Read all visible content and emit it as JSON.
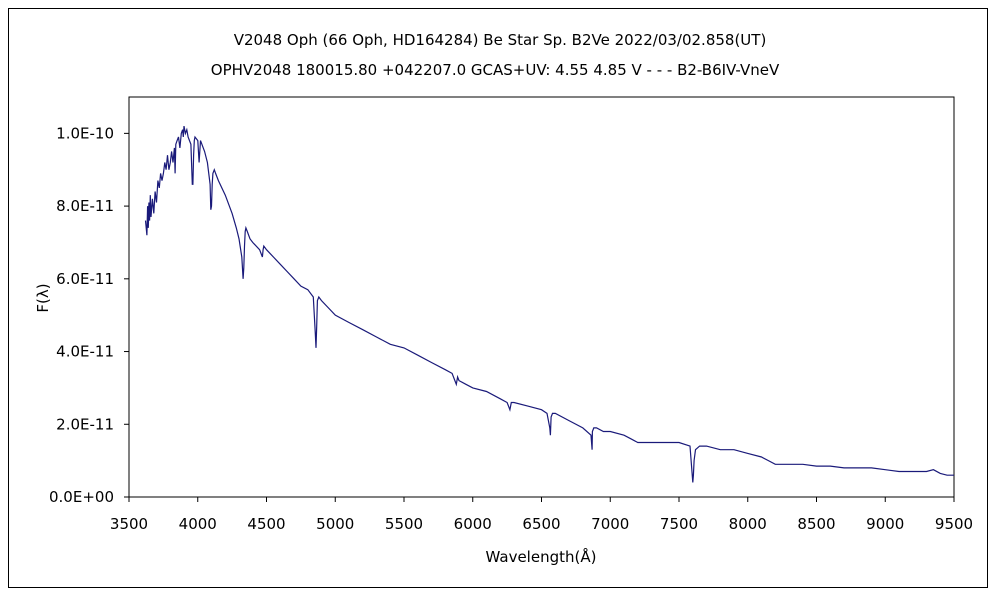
{
  "chart_data": {
    "type": "line",
    "title": "V2048 Oph (66 Oph, HD164284)    Be Star    Sp. B2Ve    2022/03/02.858(UT)",
    "subtitle": "OPHV2048 180015.80 +042207.0 GCAS+UV: 4.55 4.85 V - - - B2-B6IV-VneV",
    "xlabel": "Wavelength(Å)",
    "ylabel": "F(λ)",
    "xlim": [
      3500,
      9500
    ],
    "ylim": [
      0,
      1.1e-10
    ],
    "grid": false,
    "x_ticks": [
      3500,
      4000,
      4500,
      5000,
      5500,
      6000,
      6500,
      7000,
      7500,
      8000,
      8500,
      9000,
      9500
    ],
    "x_tick_labels": [
      "3500",
      "4000",
      "4500",
      "5000",
      "5500",
      "6000",
      "6500",
      "7000",
      "7500",
      "8000",
      "8500",
      "9000",
      "9500"
    ],
    "y_ticks": [
      0,
      2e-11,
      4e-11,
      6e-11,
      8e-11,
      1e-10
    ],
    "y_tick_labels": [
      "0.0E+00",
      "2.0E-11",
      "4.0E-11",
      "6.0E-11",
      "8.0E-11",
      "1.0E-10"
    ],
    "series": [
      {
        "color": "#1a1a7a",
        "x": [
          3620,
          3630,
          3635,
          3640,
          3645,
          3650,
          3655,
          3660,
          3670,
          3680,
          3690,
          3700,
          3710,
          3720,
          3730,
          3740,
          3750,
          3760,
          3770,
          3780,
          3790,
          3800,
          3810,
          3820,
          3830,
          3835,
          3840,
          3850,
          3860,
          3870,
          3880,
          3890,
          3895,
          3900,
          3910,
          3920,
          3930,
          3940,
          3950,
          3960,
          3965,
          3970,
          3975,
          3980,
          4000,
          4010,
          4020,
          4030,
          4050,
          4070,
          4090,
          4095,
          4100,
          4105,
          4110,
          4120,
          4130,
          4150,
          4200,
          4250,
          4280,
          4300,
          4320,
          4330,
          4335,
          4340,
          4345,
          4350,
          4360,
          4380,
          4400,
          4450,
          4470,
          4475,
          4480,
          4500,
          4550,
          4600,
          4650,
          4700,
          4750,
          4800,
          4840,
          4855,
          4860,
          4865,
          4870,
          4880,
          4900,
          4950,
          5000,
          5100,
          5200,
          5300,
          5400,
          5500,
          5600,
          5700,
          5800,
          5850,
          5880,
          5890,
          5900,
          5950,
          6000,
          6100,
          6200,
          6250,
          6270,
          6280,
          6300,
          6400,
          6500,
          6540,
          6560,
          6565,
          6570,
          6580,
          6600,
          6700,
          6800,
          6860,
          6868,
          6870,
          6880,
          6900,
          6950,
          7000,
          7100,
          7150,
          7200,
          7300,
          7400,
          7500,
          7580,
          7600,
          7605,
          7610,
          7620,
          7650,
          7700,
          7800,
          7900,
          8000,
          8100,
          8150,
          8200,
          8300,
          8400,
          8500,
          8600,
          8700,
          8800,
          8900,
          9000,
          9100,
          9200,
          9300,
          9350,
          9400,
          9450,
          9500
        ],
        "y": [
          7.6e-11,
          7.2e-11,
          8e-11,
          7.4e-11,
          8.1e-11,
          7.6e-11,
          8.3e-11,
          7.7e-11,
          8.2e-11,
          7.8e-11,
          8.4e-11,
          8.1e-11,
          8.7e-11,
          8.5e-11,
          8.9e-11,
          8.7e-11,
          8.9e-11,
          9.2e-11,
          9e-11,
          9.4e-11,
          9e-11,
          9.2e-11,
          9.5e-11,
          9.2e-11,
          9.6e-11,
          8.9e-11,
          9.7e-11,
          9.8e-11,
          9.9e-11,
          9.6e-11,
          1e-10,
          1.01e-10,
          9.9e-11,
          1.02e-10,
          1e-10,
          1.01e-10,
          9.9e-11,
          9.8e-11,
          9.7e-11,
          8.6e-11,
          8.6e-11,
          9.4e-11,
          9.8e-11,
          9.9e-11,
          9.8e-11,
          9.2e-11,
          9.8e-11,
          9.7e-11,
          9.5e-11,
          9.2e-11,
          8.6e-11,
          7.9e-11,
          8e-11,
          8.6e-11,
          8.9e-11,
          9e-11,
          8.9e-11,
          8.7e-11,
          8.3e-11,
          7.8e-11,
          7.4e-11,
          7.1e-11,
          6.6e-11,
          6e-11,
          6.3e-11,
          6.9e-11,
          7.3e-11,
          7.4e-11,
          7.3e-11,
          7.1e-11,
          7e-11,
          6.8e-11,
          6.6e-11,
          6.8e-11,
          6.9e-11,
          6.8e-11,
          6.6e-11,
          6.4e-11,
          6.2e-11,
          6e-11,
          5.8e-11,
          5.7e-11,
          5.5e-11,
          4.5e-11,
          4.1e-11,
          4.7e-11,
          5.4e-11,
          5.5e-11,
          5.4e-11,
          5.2e-11,
          5e-11,
          4.8e-11,
          4.6e-11,
          4.4e-11,
          4.2e-11,
          4.1e-11,
          3.9e-11,
          3.7e-11,
          3.5e-11,
          3.4e-11,
          3.1e-11,
          3.3e-11,
          3.2e-11,
          3.1e-11,
          3e-11,
          2.9e-11,
          2.7e-11,
          2.6e-11,
          2.4e-11,
          2.6e-11,
          2.6e-11,
          2.5e-11,
          2.4e-11,
          2.3e-11,
          1.9e-11,
          1.7e-11,
          2.2e-11,
          2.3e-11,
          2.3e-11,
          2.1e-11,
          1.9e-11,
          1.7e-11,
          1.3e-11,
          1.8e-11,
          1.9e-11,
          1.9e-11,
          1.8e-11,
          1.8e-11,
          1.7e-11,
          1.6e-11,
          1.5e-11,
          1.5e-11,
          1.5e-11,
          1.5e-11,
          1.4e-11,
          4e-12,
          6e-12,
          1e-11,
          1.3e-11,
          1.4e-11,
          1.4e-11,
          1.3e-11,
          1.3e-11,
          1.2e-11,
          1.1e-11,
          1e-11,
          9e-12,
          9e-12,
          9e-12,
          8.5e-12,
          8.5e-12,
          8e-12,
          8e-12,
          8e-12,
          7.5e-12,
          7e-12,
          7e-12,
          7e-12,
          7.5e-12,
          6.5e-12,
          6e-12,
          6e-12
        ]
      }
    ]
  }
}
